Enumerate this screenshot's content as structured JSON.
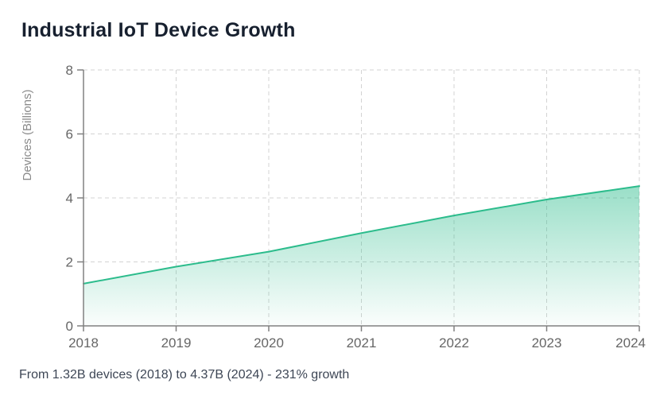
{
  "chart_data": {
    "type": "area",
    "title": "Industrial IoT Device Growth",
    "categories": [
      "2018",
      "2019",
      "2020",
      "2021",
      "2022",
      "2023",
      "2024"
    ],
    "series": [
      {
        "name": "devices",
        "values": [
          1.32,
          1.85,
          2.32,
          2.9,
          3.45,
          3.95,
          4.37
        ]
      }
    ],
    "xlabel": "",
    "ylabel": "Devices (Billions)",
    "ylim": [
      0,
      8
    ],
    "yticks": [
      0,
      2,
      4,
      6,
      8
    ],
    "grid": true,
    "grid_style": "dashed",
    "legend": false,
    "colors": {
      "line": "#2cbc8c",
      "fill_opacity_top": 0.48,
      "fill_opacity_bottom": 0.02
    }
  },
  "caption": {
    "text": "From 1.32B devices (2018) to 4.37B (2024) - 231% growth"
  },
  "style": {
    "background": "#ffffff",
    "title_color": "#17202f",
    "caption_color": "#3d4655",
    "axis_color": "#808080",
    "grid_color": "#d3d3d3",
    "tick_label_color": "#666666",
    "ylabel_color": "#8a8a8a"
  }
}
